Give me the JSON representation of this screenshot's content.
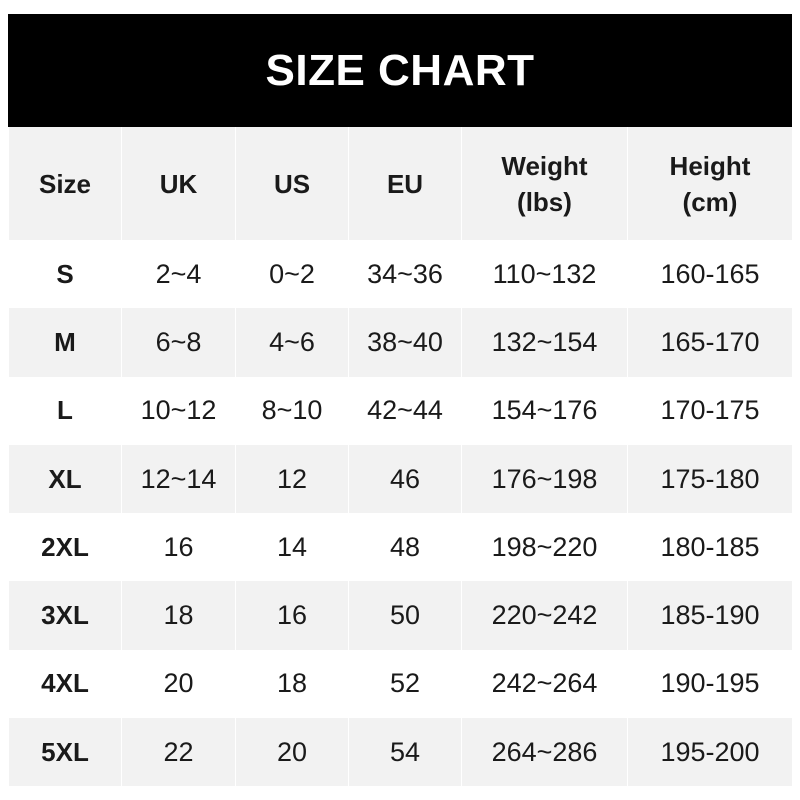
{
  "title": "SIZE CHART",
  "headers": [
    {
      "line1": "Size",
      "line2": ""
    },
    {
      "line1": "UK",
      "line2": ""
    },
    {
      "line1": "US",
      "line2": ""
    },
    {
      "line1": "EU",
      "line2": ""
    },
    {
      "line1": "Weight",
      "line2": "(lbs)"
    },
    {
      "line1": "Height",
      "line2": "(cm)"
    }
  ],
  "rows": [
    [
      "S",
      "2~4",
      "0~2",
      "34~36",
      "110~132",
      "160-165"
    ],
    [
      "M",
      "6~8",
      "4~6",
      "38~40",
      "132~154",
      "165-170"
    ],
    [
      "L",
      "10~12",
      "8~10",
      "42~44",
      "154~176",
      "170-175"
    ],
    [
      "XL",
      "12~14",
      "12",
      "46",
      "176~198",
      "175-180"
    ],
    [
      "2XL",
      "16",
      "14",
      "48",
      "198~220",
      "180-185"
    ],
    [
      "3XL",
      "18",
      "16",
      "50",
      "220~242",
      "185-190"
    ],
    [
      "4XL",
      "20",
      "18",
      "52",
      "242~264",
      "190-195"
    ],
    [
      "5XL",
      "22",
      "20",
      "54",
      "264~286",
      "195-200"
    ]
  ],
  "colors": {
    "title_bg": "#000000",
    "title_text": "#ffffff",
    "stripe": "#f2f2f2",
    "text": "#1a1a1a"
  }
}
